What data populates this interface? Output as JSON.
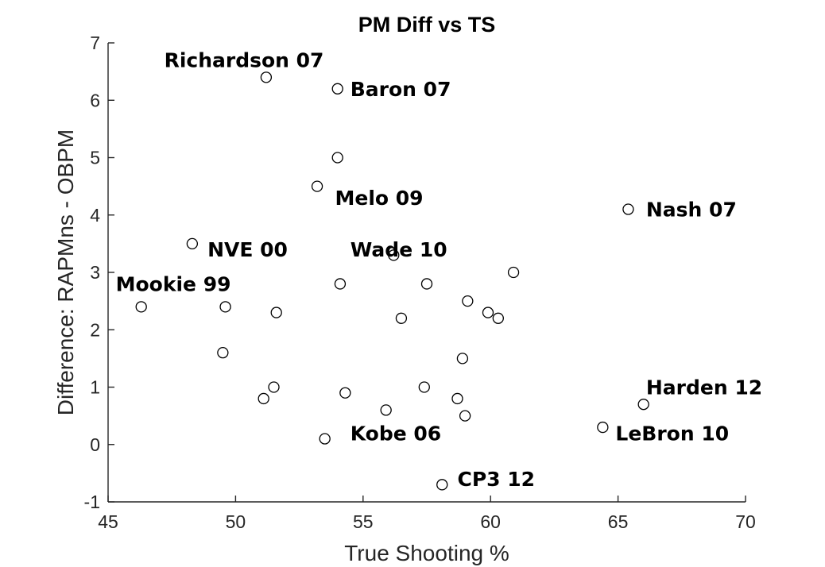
{
  "chart_data": {
    "type": "scatter",
    "title": "PM Diff vs TS",
    "xlabel": "True Shooting %",
    "ylabel": "Difference: RAPMns - OBPM",
    "xlim": [
      45,
      70
    ],
    "ylim": [
      -1,
      7
    ],
    "xticks": [
      45,
      50,
      55,
      60,
      65,
      70
    ],
    "yticks": [
      -1,
      0,
      1,
      2,
      3,
      4,
      5,
      6,
      7
    ],
    "grid": false,
    "marker": "open-circle",
    "points": [
      {
        "x": 51.2,
        "y": 6.4
      },
      {
        "x": 54.0,
        "y": 6.2
      },
      {
        "x": 54.0,
        "y": 5.0
      },
      {
        "x": 53.2,
        "y": 4.5
      },
      {
        "x": 65.4,
        "y": 4.1
      },
      {
        "x": 48.3,
        "y": 3.5
      },
      {
        "x": 56.2,
        "y": 3.3
      },
      {
        "x": 60.9,
        "y": 3.0
      },
      {
        "x": 54.1,
        "y": 2.8
      },
      {
        "x": 57.5,
        "y": 2.8
      },
      {
        "x": 59.1,
        "y": 2.5
      },
      {
        "x": 46.3,
        "y": 2.4
      },
      {
        "x": 49.6,
        "y": 2.4
      },
      {
        "x": 51.6,
        "y": 2.3
      },
      {
        "x": 59.9,
        "y": 2.3
      },
      {
        "x": 56.5,
        "y": 2.2
      },
      {
        "x": 60.3,
        "y": 2.2
      },
      {
        "x": 49.5,
        "y": 1.6
      },
      {
        "x": 58.9,
        "y": 1.5
      },
      {
        "x": 51.5,
        "y": 1.0
      },
      {
        "x": 57.4,
        "y": 1.0
      },
      {
        "x": 54.3,
        "y": 0.9
      },
      {
        "x": 51.1,
        "y": 0.8
      },
      {
        "x": 58.7,
        "y": 0.8
      },
      {
        "x": 66.0,
        "y": 0.7
      },
      {
        "x": 55.9,
        "y": 0.6
      },
      {
        "x": 59.0,
        "y": 0.5
      },
      {
        "x": 64.4,
        "y": 0.3
      },
      {
        "x": 53.5,
        "y": 0.1
      },
      {
        "x": 58.1,
        "y": -0.7
      }
    ],
    "annotations": [
      {
        "text": "Richardson 07",
        "x": 47.2,
        "y": 6.7
      },
      {
        "text": "Baron 07",
        "x": 54.5,
        "y": 6.2
      },
      {
        "text": "Melo 09",
        "x": 53.9,
        "y": 4.3
      },
      {
        "text": "Nash 07",
        "x": 66.1,
        "y": 4.1
      },
      {
        "text": "NVE 00",
        "x": 48.9,
        "y": 3.4
      },
      {
        "text": "Wade 10",
        "x": 54.5,
        "y": 3.4
      },
      {
        "text": "Mookie 99",
        "x": 45.3,
        "y": 2.8
      },
      {
        "text": "Harden 12",
        "x": 66.1,
        "y": 1.0
      },
      {
        "text": "LeBron 10",
        "x": 64.9,
        "y": 0.2
      },
      {
        "text": "Kobe 06",
        "x": 54.5,
        "y": 0.2
      },
      {
        "text": "CP3 12",
        "x": 58.7,
        "y": -0.6
      }
    ]
  }
}
